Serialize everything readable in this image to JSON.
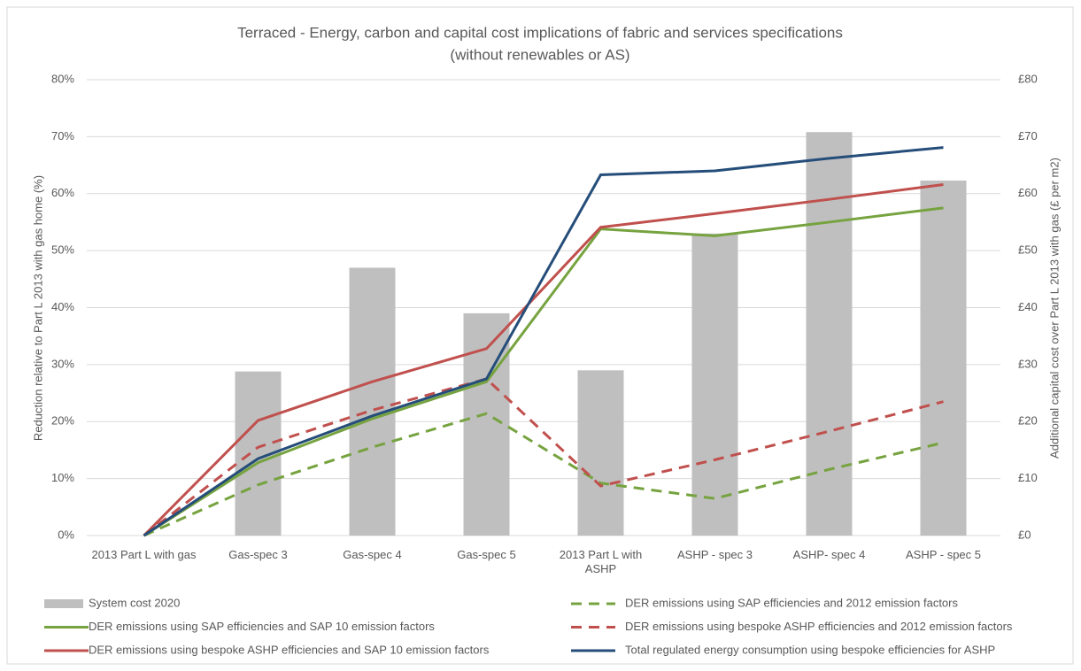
{
  "chart_data": {
    "type": "combo",
    "title": "Terraced - Energy, carbon and capital cost implications of fabric and services specifications",
    "subtitle": "(without renewables or AS)",
    "y_label": "Reduction relative to Part L 2013 with gas home (%)",
    "y2_label": "Additional capital cost over Part L 2013 with gas (£ per m2)",
    "categories": [
      "2013 Part L with gas",
      "Gas-spec 3",
      "Gas-spec 4",
      "Gas-spec 5",
      "2013 Part L with ASHP",
      "ASHP - spec 3",
      "ASHP- spec 4",
      "ASHP - spec 5"
    ],
    "ylim": [
      0,
      80
    ],
    "yticks": [
      {
        "value": 0,
        "label": "0%"
      },
      {
        "value": 10,
        "label": "10%"
      },
      {
        "value": 20,
        "label": "20%"
      },
      {
        "value": 30,
        "label": "30%"
      },
      {
        "value": 40,
        "label": "40%"
      },
      {
        "value": 50,
        "label": "50%"
      },
      {
        "value": 60,
        "label": "60%"
      },
      {
        "value": 70,
        "label": "70%"
      },
      {
        "value": 80,
        "label": "80%"
      }
    ],
    "y2lim": [
      0,
      80
    ],
    "y2ticks": [
      {
        "value": 0,
        "label": "£0"
      },
      {
        "value": 10,
        "label": "£10"
      },
      {
        "value": 20,
        "label": "£20"
      },
      {
        "value": 30,
        "label": "£30"
      },
      {
        "value": 40,
        "label": "£40"
      },
      {
        "value": 50,
        "label": "£50"
      },
      {
        "value": 60,
        "label": "£60"
      },
      {
        "value": 70,
        "label": "£70"
      },
      {
        "value": 80,
        "label": "£80"
      }
    ],
    "grid": true,
    "legend": "bottom",
    "series": [
      {
        "name": "System cost 2020",
        "type": "bar",
        "axis": "y2",
        "color": "#bfbfbf",
        "values": [
          0,
          28.8,
          47,
          39,
          29,
          53,
          70.8,
          62.3
        ]
      },
      {
        "name": "DER emissions using SAP efficiencies and 2012 emission factors",
        "type": "line",
        "dashed": true,
        "color": "#76a33f",
        "values": [
          0,
          8.9,
          15.5,
          21.4,
          9.2,
          6.5,
          11.6,
          16.3
        ]
      },
      {
        "name": "DER emissions using SAP efficiencies and SAP 10 emission factors",
        "type": "line",
        "dashed": false,
        "color": "#76a33f",
        "values": [
          0,
          12.8,
          20.5,
          27,
          53.8,
          52.6,
          55,
          57.5
        ]
      },
      {
        "name": "DER emissions using bespoke ASHP efficiencies and 2012 emission factors",
        "type": "line",
        "dashed": true,
        "color": "#c0504d",
        "values": [
          0,
          15.5,
          22,
          27.5,
          8.7,
          13.3,
          18.3,
          23.5
        ]
      },
      {
        "name": "DER emissions using bespoke ASHP efficiencies and SAP 10 emission factors",
        "type": "line",
        "dashed": false,
        "color": "#c0504d",
        "values": [
          0,
          20.2,
          27,
          32.8,
          54.1,
          56.5,
          59,
          61.6
        ]
      },
      {
        "name": "Total regulated energy consumption using bespoke efficiencies for ASHP",
        "type": "line",
        "dashed": false,
        "color": "#254d7a",
        "values": [
          0,
          13.5,
          21,
          27.5,
          63.3,
          64,
          66.2,
          68.1
        ]
      }
    ]
  }
}
